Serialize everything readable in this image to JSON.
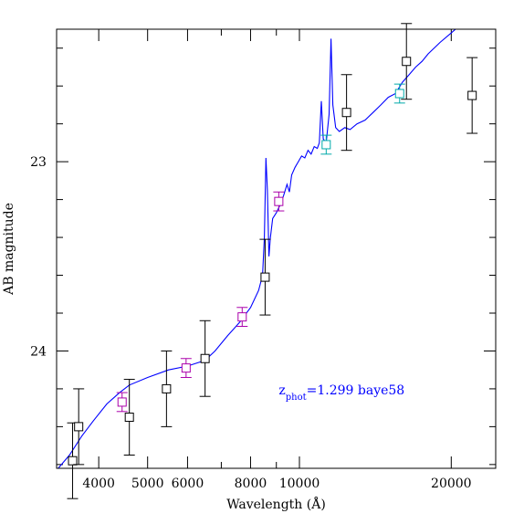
{
  "chart_data": {
    "type": "scatter",
    "xlabel": "Wavelength (Å)",
    "ylabel": "AB magnitude",
    "x_scale": "log",
    "xlim": [
      3300,
      24500
    ],
    "ylim": [
      24.62,
      22.3
    ],
    "grid": false,
    "x_major_ticks": [
      4000,
      5000,
      6000,
      8000,
      10000,
      20000
    ],
    "x_major_tick_labels": [
      "4000",
      "5000",
      "6000",
      "8000",
      "10000",
      "20000"
    ],
    "x_minor_ticks": [
      7000,
      9000,
      3000
    ],
    "y_major_ticks": [
      23,
      24
    ],
    "y_major_tick_labels": [
      "23",
      "24"
    ],
    "y_minor_ticks": [
      22.4,
      22.6,
      22.8,
      23.2,
      23.4,
      23.6,
      23.8,
      24.2,
      24.4,
      24.6
    ],
    "annotation": {
      "text_z": "z",
      "text_sub": "phot",
      "text_rest": "=1.299 baye58",
      "x": 9100,
      "y": 24.23,
      "color": "#0000ff"
    },
    "series": [
      {
        "marker": "square",
        "color": "#000000",
        "points": [
          {
            "x": 3550,
            "y": 24.58,
            "err": 0.2
          },
          {
            "x": 3650,
            "y": 24.4,
            "err": 0.2
          },
          {
            "x": 4600,
            "y": 24.35,
            "err": 0.2
          },
          {
            "x": 5450,
            "y": 24.2,
            "err": 0.2
          },
          {
            "x": 6500,
            "y": 24.04,
            "err": 0.2
          },
          {
            "x": 8550,
            "y": 23.61,
            "err": 0.2
          },
          {
            "x": 12400,
            "y": 22.74,
            "err": 0.2
          },
          {
            "x": 16300,
            "y": 22.47,
            "err": 0.2
          },
          {
            "x": 22000,
            "y": 22.65,
            "err": 0.2
          }
        ]
      },
      {
        "marker": "square",
        "color": "#aa00aa",
        "points": [
          {
            "x": 4450,
            "y": 24.27,
            "err": 0.05
          },
          {
            "x": 5960,
            "y": 24.09,
            "err": 0.05
          },
          {
            "x": 7700,
            "y": 23.82,
            "err": 0.05
          },
          {
            "x": 9100,
            "y": 23.21,
            "err": 0.05
          }
        ]
      },
      {
        "marker": "square",
        "color": "#00aaaa",
        "points": [
          {
            "x": 11300,
            "y": 22.91,
            "err": 0.05
          },
          {
            "x": 15800,
            "y": 22.64,
            "err": 0.05
          }
        ]
      }
    ],
    "sed_line": {
      "color": "#0000ff",
      "points": [
        [
          3300,
          24.63
        ],
        [
          3500,
          24.55
        ],
        [
          3700,
          24.45
        ],
        [
          3900,
          24.37
        ],
        [
          4150,
          24.28
        ],
        [
          4400,
          24.22
        ],
        [
          4600,
          24.18
        ],
        [
          5000,
          24.14
        ],
        [
          5500,
          24.1
        ],
        [
          6000,
          24.08
        ],
        [
          6500,
          24.05
        ],
        [
          6800,
          24.0
        ],
        [
          7200,
          23.92
        ],
        [
          7600,
          23.85
        ],
        [
          8000,
          23.77
        ],
        [
          8300,
          23.68
        ],
        [
          8450,
          23.6
        ],
        [
          8520,
          23.4
        ],
        [
          8580,
          22.98
        ],
        [
          8640,
          23.15
        ],
        [
          8700,
          23.5
        ],
        [
          8760,
          23.4
        ],
        [
          8850,
          23.3
        ],
        [
          9000,
          23.27
        ],
        [
          9150,
          23.23
        ],
        [
          9300,
          23.18
        ],
        [
          9450,
          23.12
        ],
        [
          9550,
          23.16
        ],
        [
          9650,
          23.07
        ],
        [
          9800,
          23.03
        ],
        [
          9950,
          23.0
        ],
        [
          10100,
          22.97
        ],
        [
          10250,
          22.98
        ],
        [
          10400,
          22.94
        ],
        [
          10550,
          22.96
        ],
        [
          10700,
          22.92
        ],
        [
          10850,
          22.93
        ],
        [
          10950,
          22.9
        ],
        [
          11050,
          22.68
        ],
        [
          11150,
          22.88
        ],
        [
          11300,
          22.9
        ],
        [
          11450,
          22.75
        ],
        [
          11550,
          22.35
        ],
        [
          11650,
          22.7
        ],
        [
          11800,
          22.82
        ],
        [
          12000,
          22.84
        ],
        [
          12300,
          22.82
        ],
        [
          12600,
          22.83
        ],
        [
          13000,
          22.8
        ],
        [
          13500,
          22.78
        ],
        [
          14000,
          22.74
        ],
        [
          14500,
          22.7
        ],
        [
          15000,
          22.66
        ],
        [
          15500,
          22.64
        ],
        [
          16000,
          22.58
        ],
        [
          16500,
          22.54
        ],
        [
          17000,
          22.5
        ],
        [
          17500,
          22.47
        ],
        [
          18000,
          22.43
        ],
        [
          19000,
          22.37
        ],
        [
          20000,
          22.32
        ],
        [
          21000,
          22.27
        ]
      ]
    }
  }
}
